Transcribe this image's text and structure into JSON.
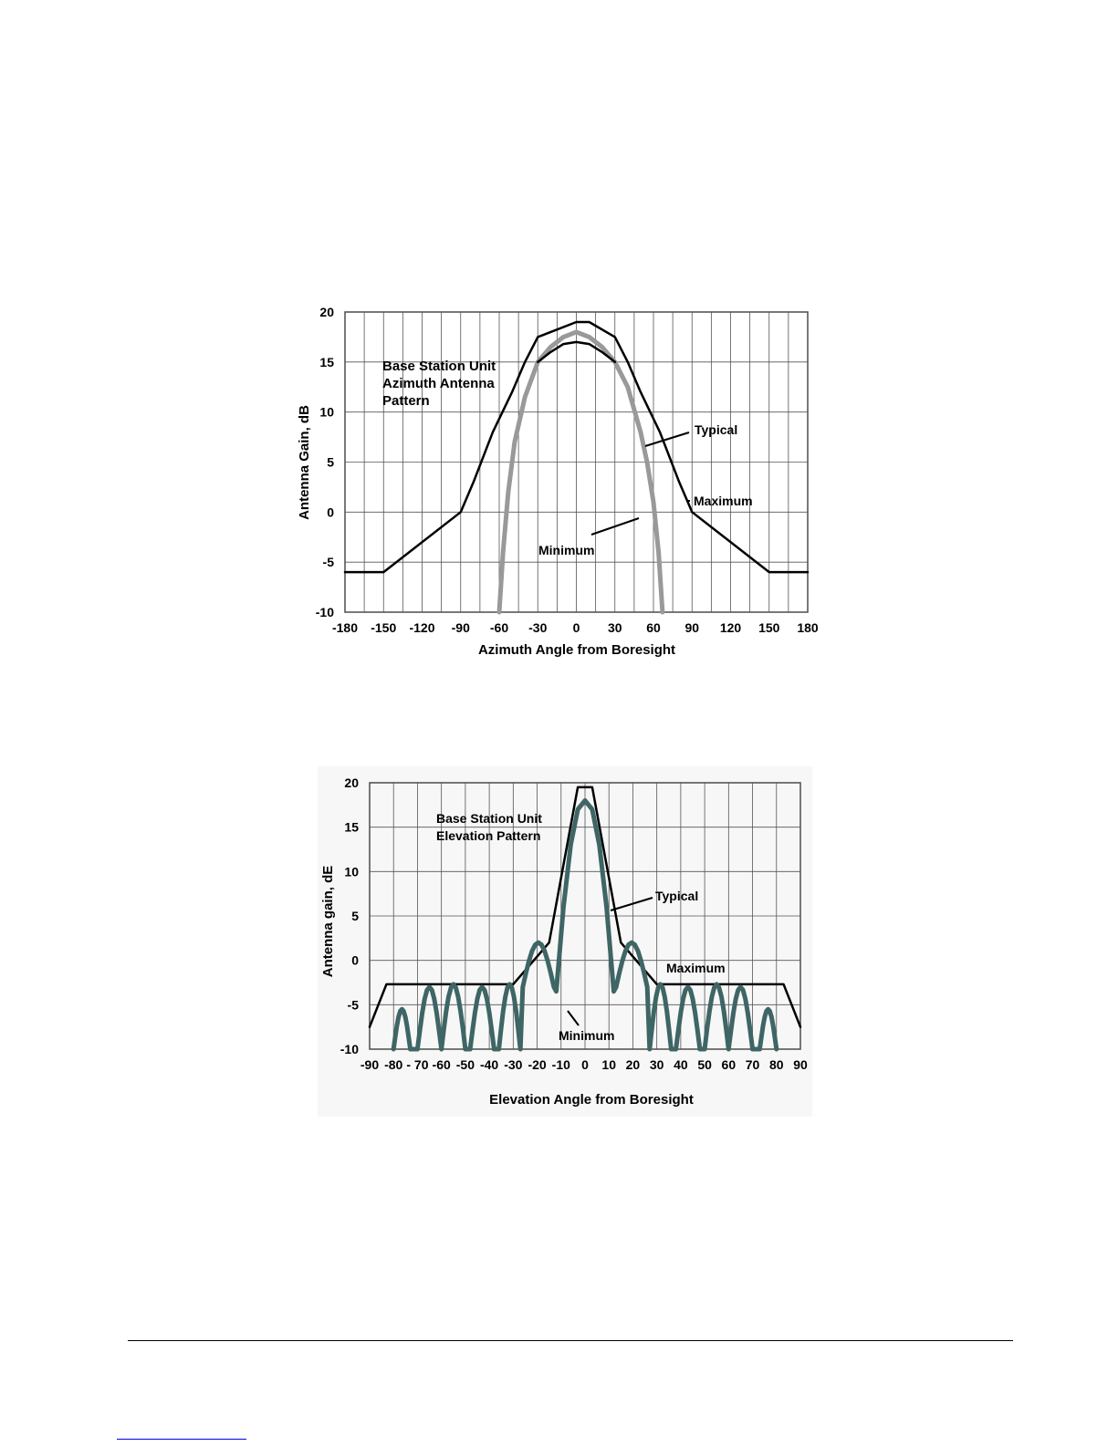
{
  "chart_data": [
    {
      "type": "line",
      "title": "Base Station Unit\nAzimuth Antenna\nPattern",
      "xlabel": "Azimuth Angle from Boresight",
      "ylabel": "Antenna Gain, dB",
      "xlim": [
        -180,
        180
      ],
      "ylim": [
        -10,
        20
      ],
      "grid": true,
      "xticks": [
        -180,
        -150,
        -120,
        -90,
        -60,
        -30,
        0,
        30,
        60,
        90,
        120,
        150,
        180
      ],
      "yticks": [
        -10,
        -5,
        0,
        5,
        10,
        15,
        20
      ],
      "xtick_labels": [
        "-180",
        "-150",
        "-120",
        "-90",
        "-60",
        "-30",
        "0",
        "30",
        "60",
        "90",
        "120",
        "150",
        "180"
      ],
      "ytick_labels": [
        "-10",
        "-5",
        "0",
        "5",
        "10",
        "15",
        "20"
      ],
      "colors": {
        "maximum": "#000000",
        "minimum": "#000000",
        "typical": "#999999",
        "grid": "#555555"
      },
      "series": [
        {
          "name": "Maximum",
          "x": [
            -180,
            -150,
            -90,
            -80,
            -65,
            -50,
            -40,
            -30,
            0,
            10,
            30,
            40,
            50,
            65,
            80,
            90,
            150,
            180
          ],
          "y": [
            -6,
            -6,
            0,
            3,
            8,
            12,
            15,
            17.5,
            19,
            19,
            17.5,
            15,
            12,
            8,
            3,
            0,
            -6,
            -6
          ]
        },
        {
          "name": "Typical",
          "x": [
            -60,
            -57,
            -53,
            -48,
            -40,
            -30,
            -20,
            -10,
            0,
            10,
            20,
            30,
            40,
            50,
            55,
            60,
            64,
            67
          ],
          "y": [
            -10,
            -4,
            2,
            7,
            11.5,
            15,
            16.5,
            17.5,
            18,
            17.5,
            16.5,
            15,
            12.5,
            8,
            5,
            1,
            -4,
            -10
          ]
        },
        {
          "name": "Minimum",
          "x": [
            -30,
            -20,
            -10,
            0,
            10,
            20,
            30
          ],
          "y": [
            15,
            16,
            16.8,
            17,
            16.8,
            16,
            15
          ]
        }
      ],
      "annotations": [
        "Typical",
        "Maximum",
        "Minimum"
      ]
    },
    {
      "type": "line",
      "title": "Base Station Unit\nElevation Pattern",
      "xlabel": "Elevation Angle from Boresight",
      "ylabel": "Antenna gain, dE",
      "xlim": [
        -90,
        90
      ],
      "ylim": [
        -10,
        20
      ],
      "grid": true,
      "xticks": [
        -90,
        -80,
        -70,
        -60,
        -50,
        -40,
        -30,
        -20,
        -10,
        0,
        10,
        20,
        30,
        40,
        50,
        60,
        70,
        80,
        90
      ],
      "yticks": [
        -10,
        -5,
        0,
        5,
        10,
        15,
        20
      ],
      "xtick_labels": [
        "-90",
        "-80",
        "- 70",
        "-60",
        "-50",
        "-40",
        "-30",
        "-20",
        "-10",
        "0",
        "10",
        "20",
        "30",
        "40",
        "50",
        "60",
        "70",
        "80",
        "90"
      ],
      "ytick_labels": [
        "-10",
        "-5",
        "0",
        "5",
        "10",
        "15",
        "20"
      ],
      "colors": {
        "maximum": "#000000",
        "typical": "#3f6565",
        "grid": "#555555"
      },
      "series": [
        {
          "name": "Maximum",
          "x": [
            -90,
            -83,
            -30,
            -15,
            -3,
            3,
            15,
            30,
            83,
            90
          ],
          "y": [
            -7.5,
            -2.7,
            -2.7,
            2,
            19.5,
            19.5,
            2,
            -2.7,
            -2.7,
            -7.5
          ]
        },
        {
          "name": "Typical",
          "x": [],
          "y": []
        }
      ],
      "annotations": [
        "Typical",
        "Maximum",
        "Minimum"
      ]
    }
  ]
}
